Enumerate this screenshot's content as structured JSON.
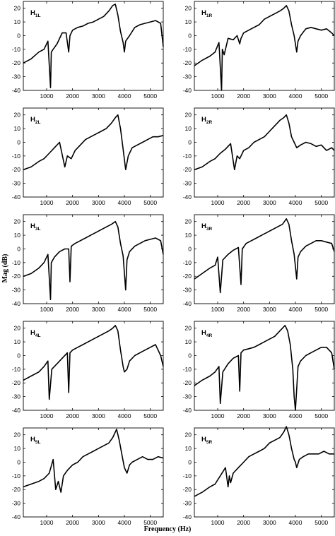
{
  "figure": {
    "xlabel": "Frequency (Hz)",
    "ylabel": "Mag (dB)"
  },
  "chart_data": {
    "type": "line",
    "xlabel": "Frequency (Hz)",
    "ylabel": "Mag (dB)",
    "xlim": [
      100,
      5500
    ],
    "ylim": [
      -40,
      25
    ],
    "xticks": [
      1000,
      2000,
      3000,
      4000,
      5000
    ],
    "yticks": [
      -40,
      -30,
      -20,
      -10,
      0,
      10,
      20
    ],
    "grid": false,
    "panels": [
      {
        "label_main": "H",
        "label_sub": "1L",
        "x": [
          100,
          400,
          700,
          900,
          1050,
          1150,
          1180,
          1250,
          1400,
          1600,
          1750,
          1850,
          1900,
          2000,
          2200,
          2400,
          2600,
          2800,
          3000,
          3200,
          3400,
          3550,
          3650,
          3750,
          3850,
          3950,
          4000,
          4050,
          4200,
          4400,
          4600,
          4800,
          5000,
          5200,
          5400,
          5500
        ],
        "y": [
          -20,
          -17,
          -12,
          -10,
          -4,
          -38,
          -12,
          -10,
          -6,
          2,
          2,
          -12,
          0,
          4,
          6,
          7,
          9,
          10,
          12,
          14,
          18,
          22,
          23,
          15,
          3,
          -5,
          -12,
          -4,
          0,
          6,
          8,
          9,
          10,
          11,
          9,
          -8
        ]
      },
      {
        "label_main": "H",
        "label_sub": "1R",
        "x": [
          100,
          400,
          700,
          900,
          1050,
          1150,
          1180,
          1250,
          1400,
          1600,
          1750,
          1850,
          1900,
          2000,
          2200,
          2400,
          2600,
          2800,
          3000,
          3200,
          3400,
          3550,
          3650,
          3750,
          3850,
          3950,
          4050,
          4100,
          4200,
          4400,
          4600,
          4800,
          5000,
          5200,
          5400,
          5500
        ],
        "y": [
          -22,
          -18,
          -15,
          -12,
          -5,
          -40,
          -10,
          -14,
          -2,
          -3,
          0,
          -6,
          -2,
          2,
          4,
          6,
          8,
          12,
          14,
          16,
          18,
          20,
          22,
          18,
          8,
          0,
          -12,
          -4,
          0,
          5,
          6,
          5,
          4,
          5,
          2,
          0
        ]
      },
      {
        "label_main": "H",
        "label_sub": "2L",
        "x": [
          100,
          400,
          700,
          900,
          1100,
          1300,
          1500,
          1700,
          1800,
          1950,
          2100,
          2300,
          2500,
          2700,
          2900,
          3100,
          3300,
          3500,
          3650,
          3750,
          3850,
          3950,
          4050,
          4150,
          4300,
          4500,
          4700,
          4900,
          5100,
          5300,
          5500
        ],
        "y": [
          -20,
          -18,
          -14,
          -12,
          -8,
          -4,
          0,
          -18,
          -10,
          -12,
          -6,
          -2,
          2,
          4,
          6,
          8,
          10,
          14,
          18,
          20,
          10,
          -5,
          -20,
          -10,
          -4,
          -2,
          0,
          2,
          4,
          4,
          5
        ]
      },
      {
        "label_main": "H",
        "label_sub": "2R",
        "x": [
          100,
          400,
          700,
          900,
          1100,
          1300,
          1500,
          1650,
          1750,
          1850,
          2000,
          2200,
          2400,
          2600,
          2800,
          3000,
          3200,
          3400,
          3550,
          3650,
          3750,
          3850,
          3950,
          4050,
          4200,
          4400,
          4600,
          4800,
          5000,
          5200,
          5400,
          5500
        ],
        "y": [
          -20,
          -18,
          -14,
          -12,
          -8,
          -5,
          -1,
          -20,
          -10,
          -12,
          -6,
          -4,
          0,
          2,
          4,
          8,
          12,
          16,
          18,
          20,
          14,
          4,
          0,
          -4,
          -2,
          0,
          -1,
          -3,
          -2,
          -6,
          -4,
          -6
        ]
      },
      {
        "label_main": "H",
        "label_sub": "3L",
        "x": [
          100,
          400,
          700,
          900,
          1050,
          1150,
          1180,
          1300,
          1500,
          1700,
          1850,
          1900,
          1950,
          2100,
          2300,
          2500,
          2700,
          2900,
          3100,
          3300,
          3500,
          3650,
          3750,
          3850,
          3950,
          4050,
          4100,
          4200,
          4400,
          4600,
          4800,
          5000,
          5200,
          5400,
          5500
        ],
        "y": [
          -20,
          -18,
          -14,
          -10,
          -4,
          -37,
          -10,
          -6,
          -2,
          0,
          0,
          -24,
          2,
          4,
          6,
          8,
          10,
          12,
          14,
          16,
          18,
          20,
          16,
          4,
          -5,
          -30,
          -8,
          -2,
          2,
          4,
          6,
          7,
          8,
          6,
          -4
        ]
      },
      {
        "label_main": "H",
        "label_sub": "3R",
        "x": [
          100,
          400,
          700,
          900,
          1000,
          1100,
          1200,
          1400,
          1600,
          1800,
          1900,
          1950,
          2100,
          2300,
          2500,
          2700,
          2900,
          3100,
          3300,
          3500,
          3650,
          3750,
          3850,
          3950,
          4050,
          4100,
          4200,
          4400,
          4600,
          4800,
          5000,
          5200,
          5400,
          5500
        ],
        "y": [
          -22,
          -18,
          -14,
          -12,
          -6,
          -32,
          -8,
          -4,
          -1,
          1,
          -26,
          0,
          4,
          6,
          8,
          10,
          12,
          14,
          16,
          18,
          22,
          18,
          6,
          -4,
          -22,
          -6,
          -2,
          2,
          4,
          6,
          6,
          5,
          4,
          -2
        ]
      },
      {
        "label_main": "H",
        "label_sub": "4L",
        "x": [
          100,
          400,
          700,
          900,
          1050,
          1100,
          1200,
          1400,
          1600,
          1800,
          1850,
          1900,
          2000,
          2200,
          2400,
          2600,
          2800,
          3000,
          3200,
          3400,
          3550,
          3650,
          3750,
          3850,
          3950,
          4000,
          4100,
          4200,
          4400,
          4600,
          4800,
          5000,
          5200,
          5300,
          5400,
          5500
        ],
        "y": [
          -18,
          -15,
          -12,
          -8,
          -4,
          -32,
          -10,
          -6,
          -2,
          2,
          -27,
          2,
          4,
          6,
          8,
          10,
          12,
          14,
          16,
          18,
          20,
          22,
          18,
          4,
          -8,
          -12,
          -10,
          -4,
          0,
          2,
          4,
          6,
          8,
          4,
          0,
          -8
        ]
      },
      {
        "label_main": "H",
        "label_sub": "4R",
        "x": [
          100,
          400,
          700,
          900,
          1050,
          1100,
          1200,
          1400,
          1600,
          1800,
          1850,
          1900,
          2000,
          2200,
          2400,
          2600,
          2800,
          3000,
          3200,
          3400,
          3500,
          3600,
          3700,
          3800,
          3900,
          3950,
          4000,
          4100,
          4200,
          4400,
          4600,
          4800,
          5000,
          5200,
          5400,
          5500
        ],
        "y": [
          -22,
          -18,
          -15,
          -12,
          -8,
          -35,
          -12,
          -6,
          -2,
          0,
          -26,
          2,
          4,
          5,
          6,
          8,
          10,
          12,
          14,
          18,
          20,
          22,
          18,
          8,
          -10,
          -30,
          -40,
          -8,
          -4,
          0,
          2,
          4,
          6,
          6,
          2,
          -10
        ]
      },
      {
        "label_main": "H",
        "label_sub": "5L",
        "x": [
          100,
          400,
          700,
          900,
          1100,
          1250,
          1350,
          1450,
          1550,
          1650,
          1800,
          2000,
          2200,
          2400,
          2600,
          2800,
          3000,
          3200,
          3400,
          3550,
          3700,
          3800,
          3900,
          4000,
          4100,
          4200,
          4300,
          4500,
          4700,
          4900,
          5100,
          5300,
          5500
        ],
        "y": [
          -18,
          -16,
          -14,
          -12,
          -8,
          2,
          -20,
          -14,
          -22,
          -10,
          -6,
          -2,
          0,
          4,
          6,
          8,
          10,
          12,
          14,
          18,
          24,
          16,
          6,
          -4,
          -8,
          -2,
          0,
          2,
          4,
          2,
          2,
          4,
          3
        ]
      },
      {
        "label_main": "H",
        "label_sub": "5R",
        "x": [
          100,
          400,
          700,
          900,
          1100,
          1300,
          1400,
          1450,
          1500,
          1600,
          1800,
          2000,
          2200,
          2400,
          2600,
          2800,
          3000,
          3200,
          3400,
          3550,
          3650,
          3750,
          3850,
          3950,
          4000,
          4050,
          4150,
          4300,
          4500,
          4700,
          4900,
          5100,
          5300,
          5500
        ],
        "y": [
          -25,
          -22,
          -18,
          -16,
          -10,
          -4,
          -18,
          -10,
          -15,
          -8,
          -4,
          0,
          4,
          6,
          8,
          10,
          14,
          16,
          18,
          22,
          26,
          20,
          10,
          2,
          0,
          -4,
          2,
          4,
          6,
          6,
          6,
          8,
          6,
          6
        ]
      }
    ]
  }
}
